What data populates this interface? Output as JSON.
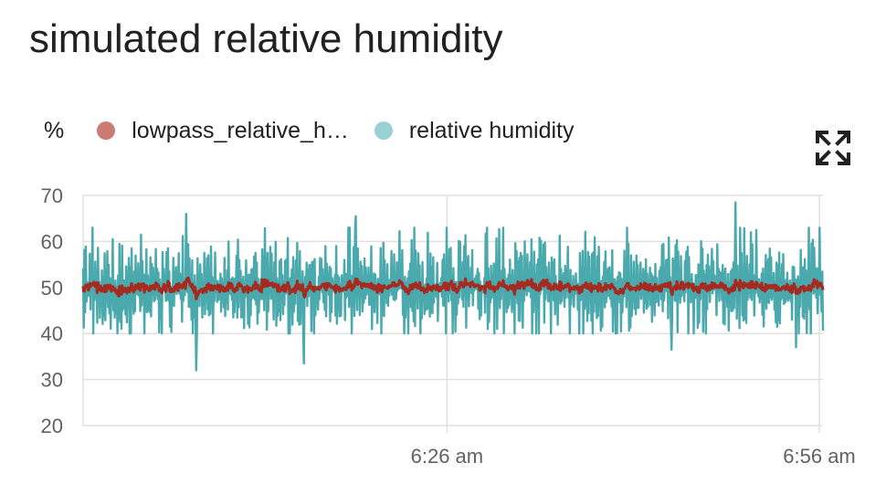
{
  "title": "simulated relative humidity",
  "legend": {
    "unit": "%",
    "items": [
      {
        "label": "lowpass_relative_h…",
        "color": "#c97b74"
      },
      {
        "label": "relative humidity",
        "color": "#9ad1d4"
      }
    ]
  },
  "colors": {
    "raw_line": "#4aa9ad",
    "lowpass_line": "#a52a1f",
    "grid": "#e0e0e0"
  },
  "icons": {
    "expand": "fullscreen-expand-icon"
  },
  "chart_data": {
    "type": "line",
    "title": "simulated relative humidity",
    "ylabel": "%",
    "xlabel": "",
    "ylim": [
      20,
      70
    ],
    "yticks": [
      20,
      30,
      40,
      50,
      60,
      70
    ],
    "xlim_minutes": [
      0,
      61
    ],
    "xticks": [
      {
        "label": "6:26 am",
        "minute": 30
      },
      {
        "label": "6:56 am",
        "minute": 60.7
      }
    ],
    "grid": true,
    "legend_position": "top-left",
    "series": [
      {
        "name": "lowpass_relative_h…",
        "mean": 50,
        "spread": 1.5,
        "range": [
          47.5,
          53.5
        ]
      },
      {
        "name": "relative humidity",
        "mean": 50,
        "spread": 6,
        "range": [
          32,
          68.5
        ],
        "notable_points": [
          {
            "minute": 8.5,
            "value": 66
          },
          {
            "minute": 9.3,
            "value": 32
          },
          {
            "minute": 18.2,
            "value": 33.5
          },
          {
            "minute": 22.5,
            "value": 65.5
          },
          {
            "minute": 53.8,
            "value": 68.5
          },
          {
            "minute": 48.5,
            "value": 36.5
          },
          {
            "minute": 58.8,
            "value": 37
          }
        ]
      }
    ]
  }
}
